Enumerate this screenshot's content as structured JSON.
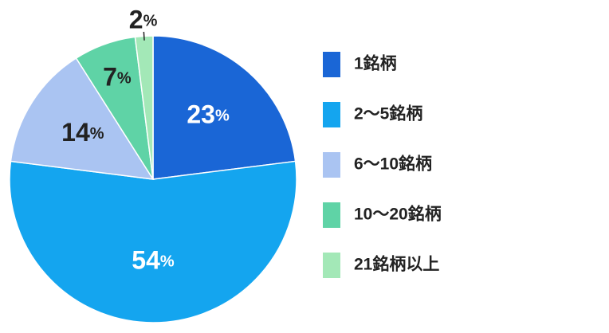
{
  "chart_data": {
    "type": "pie",
    "categories": [
      "1銘柄",
      "2〜5銘柄",
      "6〜10銘柄",
      "10〜20銘柄",
      "21銘柄以上"
    ],
    "values": [
      23,
      54,
      14,
      7,
      2
    ],
    "value_labels": [
      "23%",
      "54%",
      "14%",
      "7%",
      "2%"
    ],
    "colors": [
      "#1a66d6",
      "#14a5ef",
      "#aac4f2",
      "#5fd3a6",
      "#a3e8b7"
    ],
    "legend": "right"
  }
}
